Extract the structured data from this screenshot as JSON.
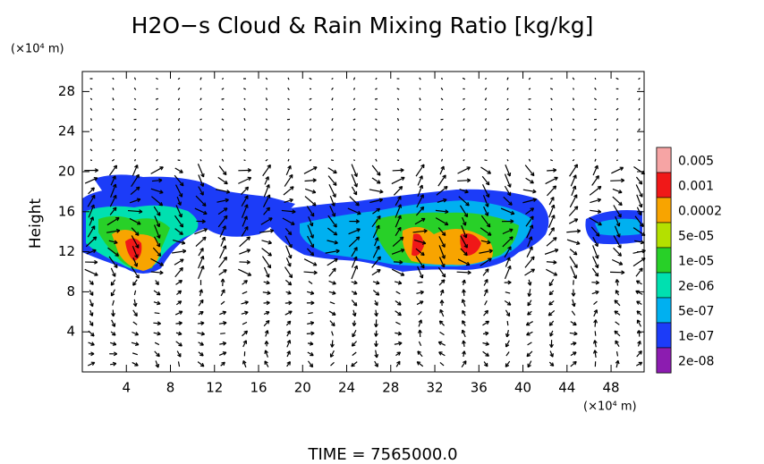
{
  "chart_data": {
    "type": "contour",
    "title": "H2O−s Cloud & Rain Mixing Ratio [kg/kg]",
    "y_label": "Height",
    "y_unit": "(×10⁴ m)",
    "x_unit": "(×10⁴ m)",
    "footer": "TIME = 7565000.0",
    "xlim": [
      0,
      51
    ],
    "ylim": [
      0,
      30
    ],
    "xticks": [
      4,
      8,
      12,
      16,
      20,
      24,
      28,
      32,
      36,
      40,
      44,
      48
    ],
    "yticks": [
      4,
      8,
      12,
      16,
      20,
      24,
      28
    ],
    "colorbar": {
      "labels": [
        "0.005",
        "0.001",
        "0.0002",
        "5e-05",
        "1e-05",
        "2e-06",
        "5e-07",
        "1e-07",
        "2e-08"
      ],
      "colors": [
        "#f6a4a4",
        "#f01818",
        "#f8a400",
        "#b4e000",
        "#28d028",
        "#00e0b0",
        "#00b0f0",
        "#1c3cf8",
        "#8c1cb0"
      ]
    }
  }
}
